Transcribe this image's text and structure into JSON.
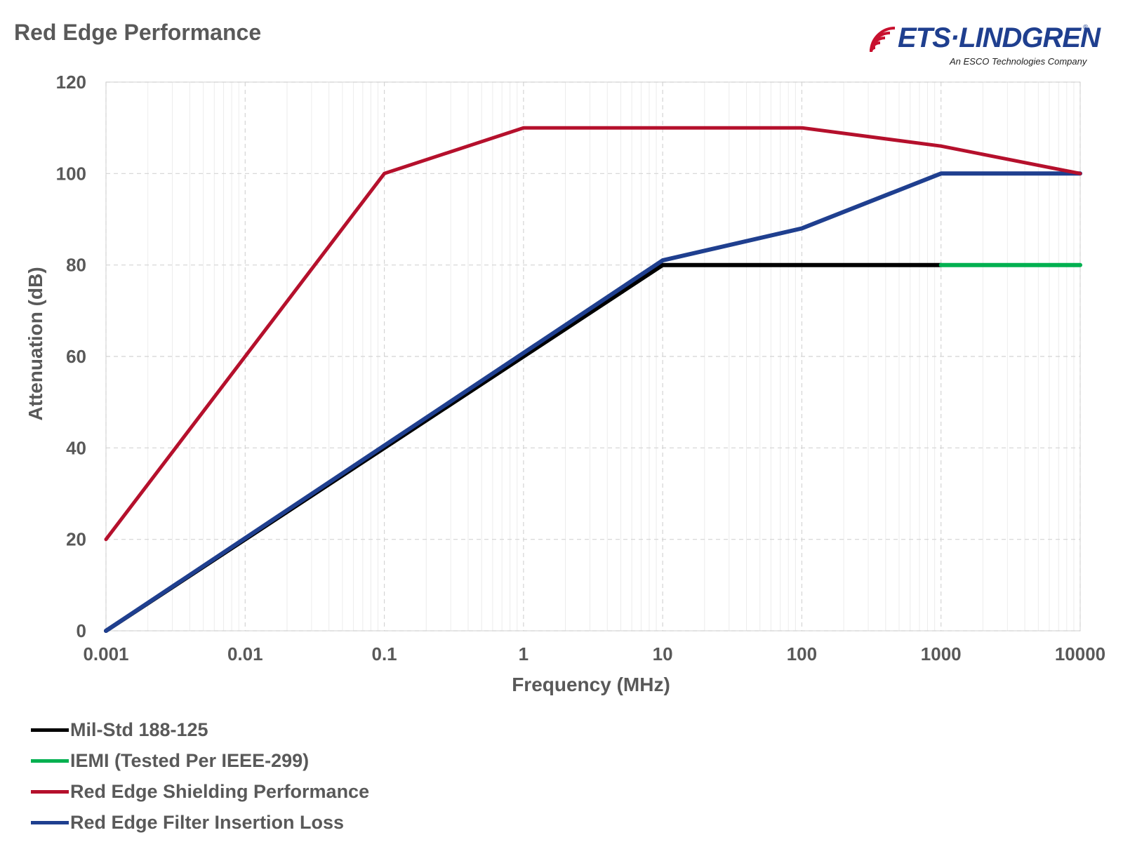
{
  "header": {
    "title": "Red Edge Performance"
  },
  "logo": {
    "brand": "ETS·LINDGREN",
    "registered": "®",
    "tagline": "An ESCO Technologies Company"
  },
  "chart_data": {
    "type": "line",
    "title": "Red Edge Performance",
    "xlabel": "Frequency (MHz)",
    "ylabel": "Attenuation (dB)",
    "xscale": "log",
    "xlim": [
      0.001,
      10000
    ],
    "ylim": [
      0,
      120
    ],
    "xticks": [
      0.001,
      0.01,
      0.1,
      1,
      10,
      100,
      1000,
      10000
    ],
    "xtick_labels": [
      "0.001",
      "0.01",
      "0.1",
      "1",
      "10",
      "100",
      "1000",
      "10000"
    ],
    "yticks": [
      0,
      20,
      40,
      60,
      80,
      100,
      120
    ],
    "ytick_labels": [
      "0",
      "20",
      "40",
      "60",
      "80",
      "100",
      "120"
    ],
    "grid": true,
    "legend_position": "bottom-left",
    "series": [
      {
        "name": "Mil-Std 188-125",
        "color": "#000000",
        "x": [
          0.001,
          10,
          1000
        ],
        "y": [
          0,
          80,
          80
        ]
      },
      {
        "name": "IEMI (Tested Per IEEE-299)",
        "color": "#00b050",
        "x": [
          1000,
          10000
        ],
        "y": [
          80,
          80
        ]
      },
      {
        "name": "Red Edge Shielding Performance",
        "color": "#b5102c",
        "x": [
          0.001,
          0.01,
          0.1,
          1,
          100,
          1000,
          10000
        ],
        "y": [
          20,
          60,
          100,
          110,
          110,
          106,
          100
        ]
      },
      {
        "name": "Red Edge Filter Insertion Loss",
        "color": "#1f3f8f",
        "x": [
          0.001,
          10,
          100,
          1000,
          10000
        ],
        "y": [
          0,
          81,
          88,
          100,
          100
        ]
      }
    ]
  }
}
